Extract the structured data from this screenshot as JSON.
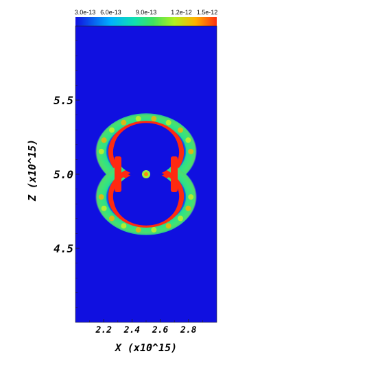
{
  "chart_data": {
    "type": "heatmap",
    "title": "",
    "xlabel": "X (x10^15)",
    "ylabel": "Z (x10^15)",
    "xlim": [
      2.0,
      3.0
    ],
    "ylim": [
      4.0,
      6.0
    ],
    "x_ticks": [
      {
        "value": 2.2,
        "label": "2.2"
      },
      {
        "value": 2.4,
        "label": "2.4"
      },
      {
        "value": 2.6,
        "label": "2.6"
      },
      {
        "value": 2.8,
        "label": "2.8"
      }
    ],
    "y_ticks": [
      {
        "value": 4.5,
        "label": "4.5"
      },
      {
        "value": 5.0,
        "label": "5.0"
      },
      {
        "value": 5.5,
        "label": "5.5"
      }
    ],
    "colorbar": {
      "range": [
        3e-13,
        1.5e-12
      ],
      "ticks": [
        {
          "value": 3e-13,
          "label": "3.0e-13"
        },
        {
          "value": 6e-13,
          "label": "6.0e-13"
        },
        {
          "value": 9e-13,
          "label": "9.0e-13"
        },
        {
          "value": 1.2e-12,
          "label": "1.2e-12"
        },
        {
          "value": 1.5e-12,
          "label": "1.5e-12"
        }
      ],
      "colors": [
        "#1010e0",
        "#00b0ff",
        "#10e0b0",
        "#40e060",
        "#b0f020",
        "#ffb000",
        "#ff3010"
      ]
    },
    "background_color": "#1010e0",
    "features": [
      {
        "name": "upper-lobe-shell",
        "center": [
          2.5,
          5.12
        ],
        "rx": 0.44,
        "ry": 0.5
      },
      {
        "name": "lower-lobe-shell",
        "center": [
          2.5,
          4.88
        ],
        "rx": 0.44,
        "ry": 0.5
      },
      {
        "name": "central-knot",
        "center": [
          2.5,
          5.0
        ],
        "value": 1.5e-12
      }
    ]
  }
}
